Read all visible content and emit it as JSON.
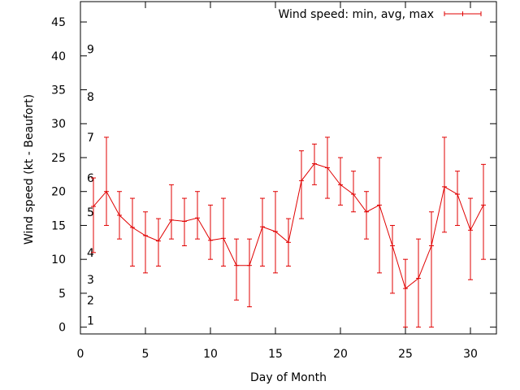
{
  "chart_data": {
    "type": "line",
    "title": "",
    "xlabel": "Day of Month",
    "ylabel": "Wind speed (kt - Beaufort)",
    "xlim": [
      0,
      32
    ],
    "ylim": [
      -1,
      48
    ],
    "x_ticks": [
      0,
      5,
      10,
      15,
      20,
      25,
      30
    ],
    "y_ticks": [
      0,
      5,
      10,
      15,
      20,
      25,
      30,
      35,
      40,
      45
    ],
    "grid": false,
    "legend_position": "top-right",
    "series": [
      {
        "name": "Wind speed: min, avg, max",
        "color": "#e00000",
        "x": [
          1,
          2,
          3,
          4,
          5,
          6,
          7,
          8,
          9,
          10,
          11,
          12,
          13,
          14,
          15,
          16,
          17,
          18,
          19,
          20,
          21,
          22,
          23,
          24,
          25,
          26,
          27,
          28,
          29,
          30,
          31
        ],
        "avg": [
          17.8,
          20,
          16.5,
          14.7,
          13.5,
          12.7,
          15.8,
          15.6,
          16.1,
          12.8,
          13.1,
          9.1,
          9.1,
          14.8,
          14.1,
          12.5,
          21.6,
          24.1,
          23.5,
          21,
          19.6,
          17,
          18,
          12,
          5.7,
          7.2,
          12,
          20.7,
          19.6,
          14.3,
          18
        ],
        "min": [
          11,
          15,
          13,
          9,
          8,
          9,
          13,
          12,
          13,
          10,
          9,
          4,
          3,
          9,
          8,
          9,
          16,
          21,
          19,
          18,
          17,
          13,
          8,
          5,
          0,
          0,
          0,
          14,
          15,
          7,
          10
        ],
        "max": [
          22,
          28,
          20,
          19,
          17,
          16,
          21,
          19,
          20,
          18,
          19,
          13,
          13,
          19,
          20,
          16,
          26,
          27,
          28,
          25,
          23,
          20,
          25,
          15,
          10,
          13,
          17,
          28,
          23,
          19,
          24
        ]
      }
    ],
    "beaufort_labels": [
      {
        "label": "1",
        "kt": 1
      },
      {
        "label": "2",
        "kt": 4
      },
      {
        "label": "3",
        "kt": 7
      },
      {
        "label": "4",
        "kt": 11
      },
      {
        "label": "5",
        "kt": 17
      },
      {
        "label": "6",
        "kt": 22
      },
      {
        "label": "7",
        "kt": 28
      },
      {
        "label": "8",
        "kt": 34
      },
      {
        "label": "9",
        "kt": 41
      }
    ]
  }
}
